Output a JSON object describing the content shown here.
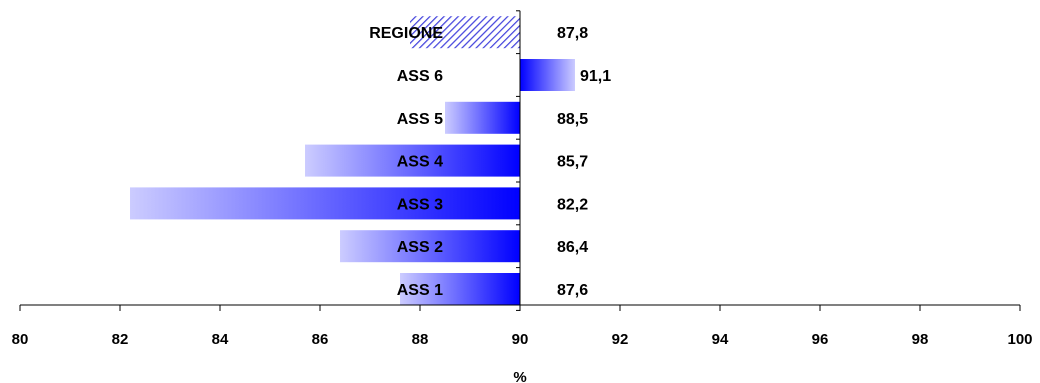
{
  "chart_data": {
    "type": "bar",
    "orientation": "horizontal",
    "categories": [
      "ASS 1",
      "ASS 2",
      "ASS 3",
      "ASS 4",
      "ASS 5",
      "ASS 6",
      "REGIONE"
    ],
    "values": [
      87.6,
      86.4,
      82.2,
      85.7,
      88.5,
      91.1,
      87.8
    ],
    "value_labels": [
      "87,6",
      "86,4",
      "82,2",
      "85,7",
      "88,5",
      "91,1",
      "87,8"
    ],
    "baseline": 90,
    "xlabel": "%",
    "ylabel": "",
    "title": "",
    "xlim": [
      80,
      100
    ],
    "x_ticks": [
      80,
      82,
      84,
      86,
      88,
      90,
      92,
      94,
      96,
      98,
      100
    ],
    "grid": false,
    "legend": "none",
    "bar_fill": "blue-gradient",
    "highlight_category": "REGIONE",
    "highlight_fill": "hatched",
    "colors": {
      "bar_dark": "#0000ff",
      "bar_light": "#ccccff",
      "hatch": "#4444dd",
      "axis": "#000000"
    }
  }
}
